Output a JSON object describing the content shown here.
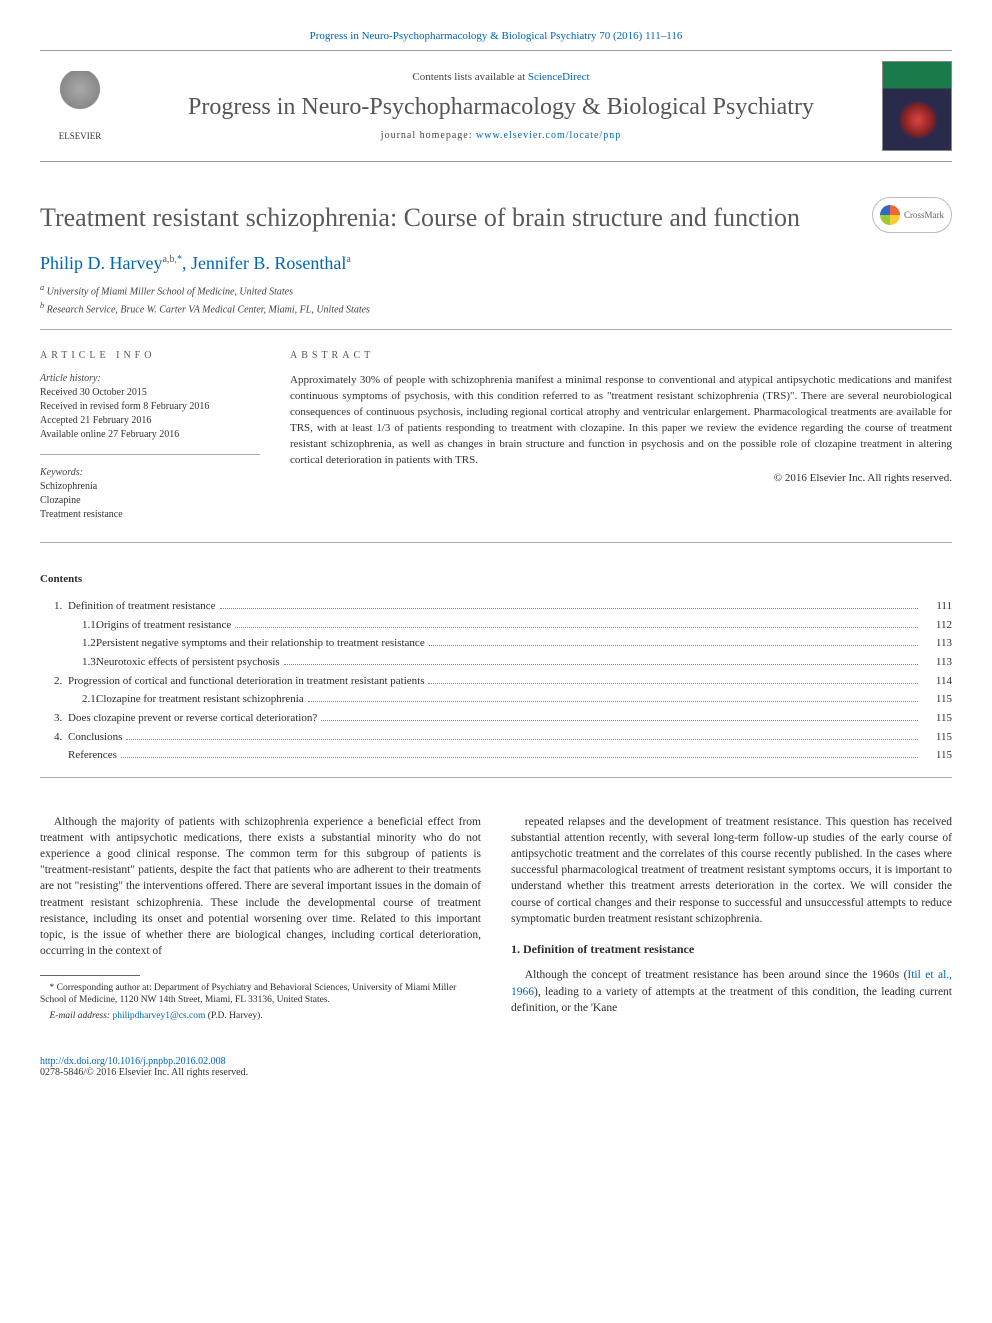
{
  "journal_ref": {
    "journal": "Progress in Neuro-Psychopharmacology & Biological Psychiatry",
    "citation": " 70 (2016) 111–116"
  },
  "header": {
    "contents_line_pre": "Contents lists available at ",
    "contents_line_link": "ScienceDirect",
    "journal_name": "Progress in Neuro-Psychopharmacology & Biological Psychiatry",
    "homepage_label": "journal homepage: ",
    "homepage_url": "www.elsevier.com/locate/pnp",
    "publisher_logo_text": "ELSEVIER"
  },
  "crossmark_label": "CrossMark",
  "article": {
    "title": "Treatment resistant schizophrenia: Course of brain structure and function",
    "authors_html": "Philip D. Harvey",
    "author1_sup": "a,b,",
    "author1_star": "*",
    "author2": ", Jennifer B. Rosenthal",
    "author2_sup": "a",
    "affiliations": [
      {
        "marker": "a",
        "text": "University of Miami Miller School of Medicine, United States"
      },
      {
        "marker": "b",
        "text": "Research Service, Bruce W. Carter VA Medical Center, Miami, FL, United States"
      }
    ]
  },
  "article_info": {
    "heading": "article info",
    "history_label": "Article history:",
    "received": "Received 30 October 2015",
    "revised": "Received in revised form 8 February 2016",
    "accepted": "Accepted 21 February 2016",
    "online": "Available online 27 February 2016",
    "keywords_label": "Keywords:",
    "keywords": [
      "Schizophrenia",
      "Clozapine",
      "Treatment resistance"
    ]
  },
  "abstract": {
    "heading": "abstract",
    "text": "Approximately 30% of people with schizophrenia manifest a minimal response to conventional and atypical antipsychotic medications and manifest continuous symptoms of psychosis, with this condition referred to as \"treatment resistant schizophrenia (TRS)\". There are several neurobiological consequences of continuous psychosis, including regional cortical atrophy and ventricular enlargement. Pharmacological treatments are available for TRS, with at least 1/3 of patients responding to treatment with clozapine. In this paper we review the evidence regarding the course of treatment resistant schizophrenia, as well as changes in brain structure and function in psychosis and on the possible role of clozapine treatment in altering cortical deterioration in patients with TRS.",
    "copyright": "© 2016 Elsevier Inc. All rights reserved."
  },
  "contents": {
    "heading": "Contents",
    "entries": [
      {
        "num": "1.",
        "label": "Definition of treatment resistance",
        "page": "111",
        "sub": false
      },
      {
        "num": "1.1.",
        "label": "Origins of treatment resistance",
        "page": "112",
        "sub": true
      },
      {
        "num": "1.2.",
        "label": "Persistent negative symptoms and their relationship to treatment resistance",
        "page": "113",
        "sub": true
      },
      {
        "num": "1.3.",
        "label": "Neurotoxic effects of persistent psychosis",
        "page": "113",
        "sub": true
      },
      {
        "num": "2.",
        "label": "Progression of cortical and functional deterioration in treatment resistant patients",
        "page": "114",
        "sub": false
      },
      {
        "num": "2.1.",
        "label": "Clozapine for treatment resistant schizophrenia",
        "page": "115",
        "sub": true
      },
      {
        "num": "3.",
        "label": "Does clozapine prevent or reverse cortical deterioration?",
        "page": "115",
        "sub": false
      },
      {
        "num": "4.",
        "label": "Conclusions",
        "page": "115",
        "sub": false
      },
      {
        "num": "",
        "label": "References",
        "page": "115",
        "sub": false
      }
    ]
  },
  "body": {
    "para1": "Although the majority of patients with schizophrenia experience a beneficial effect from treatment with antipsychotic medications, there exists a substantial minority who do not experience a good clinical response. The common term for this subgroup of patients is \"treatment-resistant\" patients, despite the fact that patients who are adherent to their treatments are not \"resisting\" the interventions offered. There are several important issues in the domain of treatment resistant schizophrenia. These include the developmental course of treatment resistance, including its onset and potential worsening over time. Related to this important topic, is the issue of whether there are biological changes, including cortical deterioration, occurring in the context of",
    "para2": "repeated relapses and the development of treatment resistance. This question has received substantial attention recently, with several long-term follow-up studies of the early course of antipsychotic treatment and the correlates of this course recently published. In the cases where successful pharmacological treatment of treatment resistant symptoms occurs, it is important to understand whether this treatment arrests deterioration in the cortex. We will consider the course of cortical changes and their response to successful and unsuccessful attempts to reduce symptomatic burden treatment resistant schizophrenia.",
    "section1_heading": "1. Definition of treatment resistance",
    "para3_pre": "Although the concept of treatment resistance has been around since the 1960s (",
    "para3_cite": "Itil et al., 1966",
    "para3_post": "), leading to a variety of attempts at the treatment of this condition, the leading current definition, or the 'Kane"
  },
  "footnote": {
    "corr_marker": "*",
    "corr_text": " Corresponding author at: Department of Psychiatry and Behavioral Sciences, University of Miami Miller School of Medicine, 1120 NW 14th Street, Miami, FL 33136, United States.",
    "email_label": "E-mail address: ",
    "email": "philipdharvey1@cs.com",
    "email_suffix": " (P.D. Harvey)."
  },
  "footer": {
    "doi": "http://dx.doi.org/10.1016/j.pnpbp.2016.02.008",
    "issn_copyright": "0278-5846/© 2016 Elsevier Inc. All rights reserved."
  },
  "colors": {
    "link": "#0066b3",
    "text": "#2d2d2d",
    "muted": "#5a5a5a",
    "rule": "#aaaaaa"
  }
}
